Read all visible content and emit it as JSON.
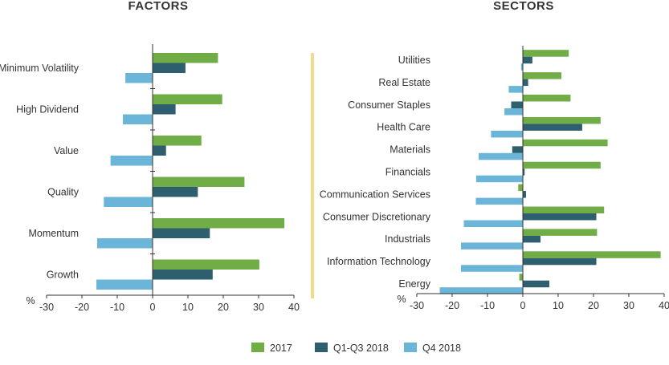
{
  "chart_data": {
    "type": "bar",
    "orientation": "horizontal",
    "legend": {
      "position": "bottom",
      "entries": [
        {
          "name": "2017",
          "color": "#70ad47"
        },
        {
          "name": "Q1-Q3 2018",
          "color": "#2e5f6e"
        },
        {
          "name": "Q4 2018",
          "color": "#6bb5d9"
        }
      ]
    },
    "divider_color": "#f2dc8c",
    "panels": [
      {
        "title": "FACTORS",
        "xlabel": "%",
        "xlim": [
          -30,
          40
        ],
        "xticks": [
          -30,
          -20,
          -10,
          0,
          10,
          20,
          30,
          40
        ],
        "categories": [
          "Minimum Volatility",
          "High Dividend",
          "Value",
          "Quality",
          "Momentum",
          "Growth"
        ],
        "series": [
          {
            "name": "2017",
            "values": [
              18.5,
              19.7,
              13.8,
              26.0,
              37.3,
              30.2
            ]
          },
          {
            "name": "Q1-Q3 2018",
            "values": [
              9.3,
              6.5,
              3.8,
              12.8,
              16.2,
              17.0
            ]
          },
          {
            "name": "Q4 2018",
            "values": [
              -7.7,
              -8.4,
              -11.9,
              -13.8,
              -15.7,
              -15.9
            ]
          }
        ]
      },
      {
        "title": "SECTORS",
        "xlabel": "%",
        "xlim": [
          -30,
          40
        ],
        "xticks": [
          -30,
          -20,
          -10,
          0,
          10,
          20,
          30,
          40
        ],
        "categories": [
          "Utilities",
          "Real Estate",
          "Consumer Staples",
          "Health Care",
          "Materials",
          "Financials",
          "Communication Services",
          "Consumer Discretionary",
          "Industrials",
          "Information Technology",
          "Energy"
        ],
        "series": [
          {
            "name": "2017",
            "values": [
              13.0,
              10.9,
              13.5,
              22.0,
              24.0,
              22.0,
              -1.3,
              23.0,
              21.0,
              39.0,
              -1.0
            ]
          },
          {
            "name": "Q1-Q3 2018",
            "values": [
              2.7,
              1.5,
              -3.3,
              16.8,
              -3.0,
              0.5,
              0.9,
              20.8,
              5.0,
              20.8,
              7.5
            ]
          },
          {
            "name": "Q4 2018",
            "values": [
              -0.5,
              -4.0,
              -5.2,
              -9.0,
              -12.5,
              -13.2,
              -13.3,
              -16.7,
              -17.5,
              -17.5,
              -23.5
            ]
          }
        ]
      }
    ]
  }
}
